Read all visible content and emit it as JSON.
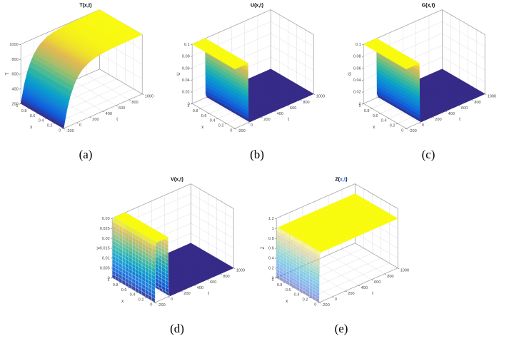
{
  "page": {
    "background": "#ffffff"
  },
  "chart_data": [
    {
      "id": "a",
      "label": "(a)",
      "type": "surface",
      "title": "T(x,t)",
      "xlabel": "x",
      "tlabel": "t",
      "zlabel": "T",
      "x_range": [
        0,
        1
      ],
      "t_range": [
        -200,
        1000
      ],
      "z_range": [
        200,
        1000
      ],
      "x_ticks": [
        "0",
        "0.2",
        "0.4",
        "0.6",
        "0.8",
        "1"
      ],
      "t_ticks": [
        "-200",
        "0",
        "200",
        "400",
        "600",
        "800",
        "1000"
      ],
      "z_ticks": [
        "200",
        "400",
        "600",
        "800",
        "1000"
      ],
      "color_range": [
        200,
        1000
      ],
      "x_dependence": "uniform",
      "z_behavior": "rises from 200 at t=-200 and saturates at 1000",
      "profile_t": [
        -200,
        -150,
        -100,
        -50,
        0,
        50,
        100,
        200,
        300,
        500,
        1000
      ],
      "profile_z": [
        200,
        427,
        590,
        706,
        789,
        849,
        892,
        944,
        971,
        992,
        1000
      ],
      "mesh": false
    },
    {
      "id": "b",
      "label": "(b)",
      "type": "surface",
      "title": "U(x,t)",
      "xlabel": "x",
      "tlabel": "t",
      "zlabel": "U",
      "x_range": [
        0,
        1
      ],
      "t_range": [
        -200,
        1000
      ],
      "z_range": [
        0,
        0.1
      ],
      "x_ticks": [
        "0",
        "0.2",
        "0.4",
        "0.6",
        "0.8",
        "1"
      ],
      "t_ticks": [
        "-200",
        "0",
        "200",
        "400",
        "600",
        "800",
        "1000"
      ],
      "z_ticks": [
        "0",
        "0.02",
        "0.04",
        "0.06",
        "0.08",
        "0.1"
      ],
      "color_range": [
        0,
        0.1
      ],
      "x_dependence": "uniform",
      "z_behavior": "plateau 0.1 for t<0, sharp drop to 0 for t>0",
      "profile_t": [
        -200,
        0,
        8,
        1000
      ],
      "profile_z": [
        0.1,
        0.1,
        0,
        0
      ],
      "mesh": false
    },
    {
      "id": "c",
      "label": "(c)",
      "type": "surface",
      "title": "G(x,t)",
      "xlabel": "x",
      "tlabel": "t",
      "zlabel": "G",
      "x_range": [
        0,
        1
      ],
      "t_range": [
        -200,
        1000
      ],
      "z_range": [
        0,
        0.1
      ],
      "x_ticks": [
        "0",
        "0.2",
        "0.4",
        "0.6",
        "0.8",
        "1"
      ],
      "t_ticks": [
        "-200",
        "0",
        "200",
        "400",
        "600",
        "800",
        "1000"
      ],
      "z_ticks": [
        "0",
        "0.02",
        "0.04",
        "0.06",
        "0.08",
        "0.1"
      ],
      "color_range": [
        0,
        0.1
      ],
      "x_dependence": "uniform",
      "z_behavior": "plateau 0.1 for t<0, sharp drop to 0 for t>0",
      "profile_t": [
        -200,
        0,
        8,
        1000
      ],
      "profile_z": [
        0.1,
        0.1,
        0,
        0
      ],
      "mesh": false
    },
    {
      "id": "d",
      "label": "(d)",
      "type": "surface",
      "title": "V(x,t)",
      "xlabel": "x",
      "tlabel": "t",
      "zlabel": "V",
      "x_range": [
        0,
        1
      ],
      "t_range": [
        -200,
        1000
      ],
      "z_range": [
        0,
        0.03
      ],
      "x_ticks": [
        "0",
        "0.2",
        "0.4",
        "0.6",
        "0.8",
        "1"
      ],
      "t_ticks": [
        "-200",
        "0",
        "200",
        "400",
        "600",
        "800",
        "1000"
      ],
      "z_ticks": [
        "0",
        "0.005",
        "0.01",
        "0.015",
        "0.02",
        "0.025",
        "0.03"
      ],
      "color_range": [
        0,
        0.03
      ],
      "x_dependence": "uniform",
      "z_behavior": "wall up from 0 at t=-200, plateau 0.03 for -200<t<0, drop to 0 for t>0",
      "profile_t": [
        -200,
        -192,
        0,
        8,
        1000
      ],
      "profile_z": [
        0,
        0.03,
        0.03,
        0,
        0
      ],
      "mesh": true,
      "mesh_color": "#bfe6f5",
      "wall_opacity": 0.92
    },
    {
      "id": "e",
      "label": "(e)",
      "type": "surface",
      "title": "Z(x,t)",
      "title_rich": [
        {
          "text": "Z(",
          "color": "#000000"
        },
        {
          "text": "x,t",
          "color": "#1f6af5"
        },
        {
          "text": ")",
          "color": "#000000"
        }
      ],
      "xlabel": "x",
      "tlabel": "t",
      "zlabel": "Z",
      "x_range": [
        0,
        1
      ],
      "t_range": [
        -200,
        1000
      ],
      "z_range": [
        0,
        1.2
      ],
      "x_ticks": [
        "0",
        "0.2",
        "0.4",
        "0.6",
        "0.8",
        "1"
      ],
      "t_ticks": [
        "-200",
        "0",
        "200",
        "400",
        "600",
        "800",
        "1000"
      ],
      "z_ticks": [
        "0",
        "0.2",
        "0.4",
        "0.6",
        "0.8",
        "1",
        "1.2"
      ],
      "color_range": [
        0,
        1
      ],
      "x_dependence": "uniform",
      "z_behavior": "wall up from 0 at t=-200, plateau at 1 for all t>-200",
      "profile_t": [
        -200,
        -192,
        1000
      ],
      "profile_z": [
        0,
        1,
        1
      ],
      "mesh": true,
      "mesh_color": "#dce6fa",
      "wall_opacity": 0.5
    }
  ]
}
